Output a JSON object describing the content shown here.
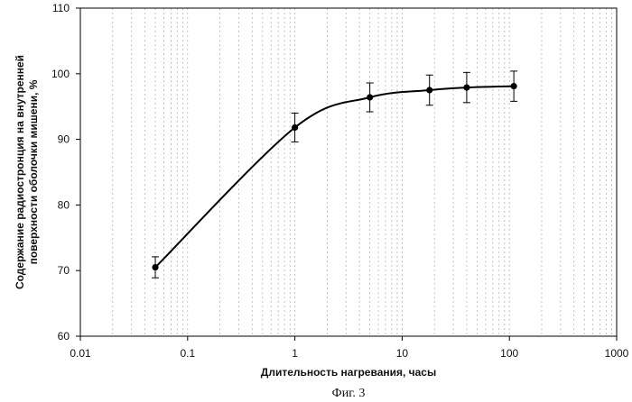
{
  "chart_data": {
    "type": "line",
    "title": "",
    "caption": "Фиг. 3",
    "xlabel": "Длительность нагревания, часы",
    "ylabel_lines": [
      "Содержание радиостронция на внутренней",
      "поверхности оболочки мишени, %"
    ],
    "x_scale": "log",
    "xlim": [
      0.01,
      1000
    ],
    "ylim": [
      60,
      110
    ],
    "x_ticks": [
      0.01,
      0.1,
      1,
      10,
      100,
      1000
    ],
    "x_tick_labels": [
      "0.01",
      "0.1",
      "1",
      "10",
      "100",
      "1000"
    ],
    "y_ticks": [
      60,
      70,
      80,
      90,
      100,
      110
    ],
    "y_tick_labels": [
      "60",
      "70",
      "80",
      "90",
      "100",
      "110"
    ],
    "grid": "vertical dashed lines at minor log ticks",
    "smooth": true,
    "series": [
      {
        "x": [
          0.05,
          1,
          5,
          18,
          40,
          110
        ],
        "y": [
          70.5,
          91.8,
          96.4,
          97.5,
          97.9,
          98.1
        ],
        "error": [
          1.6,
          2.2,
          2.2,
          2.3,
          2.3,
          2.3
        ],
        "color": "#000000"
      }
    ]
  }
}
